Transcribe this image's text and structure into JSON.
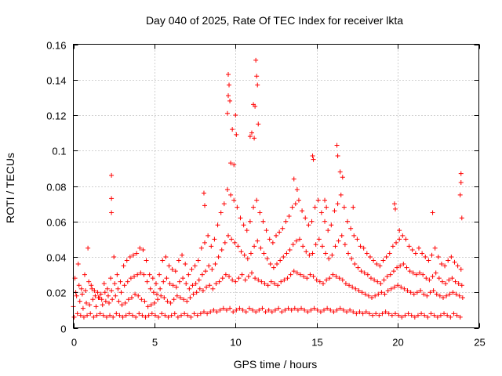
{
  "chart_data": {
    "type": "scatter",
    "title": "Day 040 of 2025, Rate Of TEC Index for receiver lkta",
    "xlabel": "GPS time / hours",
    "ylabel": "ROTI / TECUs",
    "xlim": [
      0,
      25
    ],
    "ylim": [
      0,
      0.16
    ],
    "xticks": [
      0,
      5,
      10,
      15,
      20,
      25
    ],
    "xtick_labels": [
      "0",
      "5",
      "10",
      "15",
      "20",
      "25"
    ],
    "yticks": [
      0,
      0.02,
      0.04,
      0.06,
      0.08,
      0.1,
      0.12,
      0.14,
      0.16
    ],
    "ytick_labels": [
      "0",
      "0.02",
      "0.04",
      "0.06",
      "0.08",
      "0.1",
      "0.12",
      "0.14",
      "0.16"
    ],
    "grid": true,
    "marker": "+",
    "color": "#ff0000",
    "series": [
      {
        "name": "ROTI",
        "x": [
          0.0,
          0.2,
          0.4,
          0.6,
          0.8,
          1.0,
          1.2,
          1.4,
          1.6,
          1.8,
          2.0,
          2.2,
          2.4,
          2.6,
          2.8,
          3.0,
          3.2,
          3.4,
          3.6,
          3.8,
          4.0,
          4.2,
          4.4,
          4.6,
          4.8,
          5.0,
          5.2,
          5.4,
          5.6,
          5.8,
          6.0,
          6.2,
          6.4,
          6.6,
          6.8,
          7.0,
          7.2,
          7.4,
          7.6,
          7.8,
          8.0,
          8.2,
          8.4,
          8.6,
          8.8,
          9.0,
          9.2,
          9.4,
          9.6,
          9.8,
          10.0,
          10.2,
          10.4,
          10.6,
          10.8,
          11.0,
          11.2,
          11.4,
          11.6,
          11.8,
          12.0,
          12.2,
          12.4,
          12.6,
          12.8,
          13.0,
          13.2,
          13.4,
          13.6,
          13.8,
          14.0,
          14.2,
          14.4,
          14.6,
          14.8,
          15.0,
          15.2,
          15.4,
          15.6,
          15.8,
          16.0,
          16.2,
          16.4,
          16.6,
          16.8,
          17.0,
          17.2,
          17.4,
          17.6,
          17.8,
          18.0,
          18.2,
          18.4,
          18.6,
          18.8,
          19.0,
          19.2,
          19.4,
          19.6,
          19.8,
          20.0,
          20.2,
          20.4,
          20.6,
          20.8,
          21.0,
          21.2,
          21.4,
          21.6,
          21.8,
          22.0,
          22.2,
          22.4,
          22.6,
          22.8,
          23.0,
          23.2,
          23.4,
          23.6,
          23.8,
          24.0,
          0.05,
          0.25,
          0.45,
          0.65,
          0.85,
          1.05,
          1.25,
          1.45,
          1.65,
          1.85,
          2.05,
          2.25,
          2.45,
          2.65,
          2.85,
          3.05,
          3.25,
          3.45,
          3.65,
          3.85,
          4.05,
          4.25,
          4.45,
          4.65,
          4.85,
          5.05,
          5.25,
          5.45,
          5.65,
          5.85,
          6.05,
          6.25,
          6.45,
          6.65,
          6.85,
          7.05,
          7.25,
          7.45,
          7.65,
          7.85,
          8.05,
          8.25,
          8.45,
          8.65,
          8.85,
          9.05,
          9.25,
          9.45,
          9.65,
          9.85,
          10.05,
          10.25,
          10.45,
          10.65,
          10.85,
          11.05,
          11.25,
          11.45,
          11.65,
          11.85,
          12.05,
          12.25,
          12.45,
          12.65,
          12.85,
          13.05,
          13.25,
          13.45,
          13.65,
          13.85,
          14.05,
          14.25,
          14.45,
          14.65,
          14.85,
          15.05,
          15.25,
          15.45,
          15.65,
          15.85,
          16.05,
          16.25,
          16.45,
          16.65,
          16.85,
          17.05,
          17.25,
          17.45,
          17.65,
          17.85,
          18.05,
          18.25,
          18.45,
          18.65,
          18.85,
          19.05,
          19.25,
          19.45,
          19.65,
          19.85,
          20.05,
          20.25,
          20.45,
          20.65,
          20.85,
          21.05,
          21.25,
          21.45,
          21.65,
          21.85,
          22.05,
          22.25,
          22.45,
          22.65,
          22.85,
          23.05,
          23.25,
          23.45,
          23.65,
          23.85,
          0.1,
          0.3,
          0.5,
          0.7,
          0.9,
          1.1,
          1.3,
          1.5,
          1.7,
          1.9,
          2.1,
          2.3,
          2.5,
          2.7,
          2.9,
          3.1,
          3.3,
          3.5,
          3.7,
          3.9,
          4.1,
          4.3,
          4.5,
          4.7,
          4.9,
          5.1,
          5.3,
          5.5,
          5.7,
          5.9,
          6.1,
          6.3,
          6.5,
          6.7,
          6.9,
          7.1,
          7.3,
          7.5,
          7.7,
          7.9,
          8.1,
          8.3,
          8.5,
          8.7,
          8.9,
          9.1,
          9.3,
          9.5,
          9.7,
          9.9,
          10.1,
          10.3,
          10.5,
          10.7,
          10.9,
          11.1,
          11.3,
          11.5,
          11.7,
          11.9,
          12.1,
          12.3,
          12.5,
          12.7,
          12.9,
          13.1,
          13.3,
          13.5,
          13.7,
          13.9,
          14.1,
          14.3,
          14.5,
          14.7,
          14.9,
          15.1,
          15.3,
          15.5,
          15.7,
          15.9,
          16.1,
          16.3,
          16.5,
          16.7,
          16.9,
          17.1,
          17.3,
          17.5,
          17.7,
          17.9,
          18.1,
          18.3,
          18.5,
          18.7,
          18.9,
          19.1,
          19.3,
          19.5,
          19.7,
          19.9,
          20.1,
          20.3,
          20.5,
          20.7,
          20.9,
          21.1,
          21.3,
          21.5,
          21.7,
          21.9,
          22.1,
          22.3,
          22.5,
          22.7,
          22.9,
          23.1,
          23.3,
          23.5,
          23.7,
          23.9,
          0.15,
          0.35,
          0.55,
          0.75,
          0.95,
          1.15,
          1.35,
          1.55,
          1.75,
          1.95,
          2.15,
          2.35,
          2.55,
          2.75,
          2.95,
          3.15,
          3.35,
          3.55,
          3.75,
          3.95,
          4.15,
          4.35,
          4.55,
          4.75,
          4.95,
          5.15,
          5.35,
          5.55,
          5.75,
          5.95,
          6.15,
          6.35,
          6.55,
          6.75,
          6.95,
          7.15,
          7.35,
          7.55,
          7.75,
          7.95,
          8.15,
          8.35,
          8.55,
          8.75,
          8.95,
          9.15,
          9.35,
          9.55,
          9.75,
          9.95,
          10.15,
          10.35,
          10.55,
          10.75,
          10.95,
          11.15,
          11.35,
          11.55,
          11.75,
          11.95,
          12.15,
          12.35,
          12.55,
          12.75,
          12.95,
          13.15,
          13.35,
          13.55,
          13.75,
          13.95,
          14.15,
          14.35,
          14.55,
          14.75,
          14.95,
          15.15,
          15.35,
          15.55,
          15.75,
          15.95,
          16.15,
          16.35,
          16.55,
          16.75,
          16.95,
          17.15,
          17.35,
          17.55,
          17.75,
          17.95,
          18.15,
          18.35,
          18.55,
          18.75,
          18.95,
          19.15,
          19.35,
          19.55,
          19.75,
          19.95,
          20.15,
          20.35,
          20.55,
          20.75,
          20.95,
          21.15,
          21.35,
          21.55,
          21.75,
          21.95,
          22.15,
          22.35,
          22.55,
          22.75,
          22.95,
          23.15,
          23.35,
          23.55,
          23.75,
          23.95,
          2.35,
          2.35,
          2.35,
          9.55,
          9.6,
          9.55,
          9.65,
          9.5,
          9.8,
          10.0,
          10.05,
          11.25,
          11.3,
          11.35,
          11.2,
          11.1,
          11.4,
          11.15,
          9.7,
          9.9,
          10.9,
          11.0,
          14.75,
          14.8,
          16.25,
          16.3,
          16.45,
          16.6,
          17.25,
          19.8,
          19.85,
          20.1,
          22.15,
          23.9,
          23.9,
          23.85,
          23.95,
          8.05,
          8.1,
          13.6,
          13.8,
          15.5,
          15.6
        ],
        "y": [
          0.012,
          0.018,
          0.015,
          0.011,
          0.014,
          0.013,
          0.016,
          0.012,
          0.017,
          0.013,
          0.015,
          0.014,
          0.016,
          0.018,
          0.015,
          0.013,
          0.014,
          0.016,
          0.017,
          0.019,
          0.018,
          0.016,
          0.015,
          0.012,
          0.013,
          0.014,
          0.016,
          0.018,
          0.017,
          0.015,
          0.014,
          0.016,
          0.018,
          0.017,
          0.016,
          0.015,
          0.017,
          0.019,
          0.02,
          0.022,
          0.021,
          0.023,
          0.024,
          0.022,
          0.025,
          0.026,
          0.028,
          0.03,
          0.029,
          0.027,
          0.026,
          0.028,
          0.03,
          0.027,
          0.029,
          0.031,
          0.028,
          0.027,
          0.026,
          0.025,
          0.024,
          0.026,
          0.025,
          0.024,
          0.026,
          0.027,
          0.028,
          0.03,
          0.032,
          0.031,
          0.03,
          0.029,
          0.028,
          0.03,
          0.029,
          0.027,
          0.026,
          0.025,
          0.027,
          0.028,
          0.03,
          0.029,
          0.028,
          0.027,
          0.025,
          0.024,
          0.023,
          0.022,
          0.021,
          0.02,
          0.019,
          0.018,
          0.017,
          0.018,
          0.019,
          0.02,
          0.019,
          0.021,
          0.022,
          0.023,
          0.024,
          0.023,
          0.022,
          0.021,
          0.02,
          0.019,
          0.02,
          0.021,
          0.019,
          0.018,
          0.02,
          0.021,
          0.019,
          0.018,
          0.017,
          0.018,
          0.019,
          0.02,
          0.019,
          0.018,
          0.017,
          0.006,
          0.008,
          0.007,
          0.006,
          0.007,
          0.008,
          0.006,
          0.007,
          0.008,
          0.007,
          0.006,
          0.007,
          0.006,
          0.008,
          0.007,
          0.006,
          0.007,
          0.008,
          0.007,
          0.006,
          0.008,
          0.007,
          0.006,
          0.007,
          0.008,
          0.007,
          0.006,
          0.008,
          0.007,
          0.006,
          0.007,
          0.008,
          0.006,
          0.007,
          0.008,
          0.007,
          0.006,
          0.008,
          0.007,
          0.008,
          0.009,
          0.008,
          0.009,
          0.01,
          0.009,
          0.01,
          0.011,
          0.01,
          0.011,
          0.009,
          0.01,
          0.011,
          0.01,
          0.009,
          0.011,
          0.01,
          0.009,
          0.01,
          0.011,
          0.009,
          0.01,
          0.009,
          0.01,
          0.011,
          0.009,
          0.01,
          0.011,
          0.01,
          0.011,
          0.01,
          0.011,
          0.01,
          0.009,
          0.01,
          0.011,
          0.01,
          0.009,
          0.01,
          0.011,
          0.01,
          0.009,
          0.01,
          0.011,
          0.01,
          0.009,
          0.01,
          0.009,
          0.008,
          0.009,
          0.008,
          0.009,
          0.008,
          0.007,
          0.008,
          0.007,
          0.008,
          0.009,
          0.008,
          0.007,
          0.008,
          0.007,
          0.006,
          0.007,
          0.008,
          0.007,
          0.006,
          0.007,
          0.008,
          0.007,
          0.006,
          0.008,
          0.007,
          0.006,
          0.007,
          0.008,
          0.007,
          0.006,
          0.008,
          0.007,
          0.006,
          0.028,
          0.036,
          0.022,
          0.03,
          0.045,
          0.024,
          0.021,
          0.02,
          0.019,
          0.025,
          0.022,
          0.028,
          0.04,
          0.03,
          0.026,
          0.035,
          0.038,
          0.04,
          0.041,
          0.042,
          0.045,
          0.044,
          0.038,
          0.03,
          0.028,
          0.025,
          0.03,
          0.038,
          0.04,
          0.035,
          0.033,
          0.032,
          0.038,
          0.041,
          0.036,
          0.03,
          0.033,
          0.035,
          0.038,
          0.045,
          0.048,
          0.052,
          0.046,
          0.05,
          0.058,
          0.065,
          0.07,
          0.078,
          0.075,
          0.072,
          0.068,
          0.062,
          0.058,
          0.055,
          0.06,
          0.068,
          0.072,
          0.065,
          0.06,
          0.055,
          0.05,
          0.048,
          0.052,
          0.054,
          0.056,
          0.06,
          0.063,
          0.068,
          0.07,
          0.072,
          0.066,
          0.062,
          0.058,
          0.06,
          0.068,
          0.072,
          0.065,
          0.06,
          0.055,
          0.058,
          0.066,
          0.07,
          0.075,
          0.068,
          0.06,
          0.056,
          0.052,
          0.05,
          0.046,
          0.045,
          0.042,
          0.04,
          0.038,
          0.036,
          0.035,
          0.038,
          0.04,
          0.042,
          0.046,
          0.048,
          0.05,
          0.052,
          0.05,
          0.046,
          0.044,
          0.042,
          0.045,
          0.042,
          0.04,
          0.038,
          0.041,
          0.045,
          0.04,
          0.036,
          0.035,
          0.038,
          0.04,
          0.037,
          0.035,
          0.033,
          0.02,
          0.024,
          0.019,
          0.021,
          0.026,
          0.022,
          0.018,
          0.017,
          0.016,
          0.02,
          0.018,
          0.021,
          0.025,
          0.022,
          0.02,
          0.024,
          0.026,
          0.028,
          0.029,
          0.03,
          0.031,
          0.03,
          0.026,
          0.022,
          0.02,
          0.019,
          0.022,
          0.026,
          0.028,
          0.025,
          0.024,
          0.023,
          0.026,
          0.028,
          0.025,
          0.022,
          0.024,
          0.025,
          0.027,
          0.03,
          0.032,
          0.035,
          0.033,
          0.036,
          0.04,
          0.044,
          0.048,
          0.052,
          0.05,
          0.048,
          0.046,
          0.043,
          0.041,
          0.039,
          0.042,
          0.046,
          0.049,
          0.045,
          0.042,
          0.039,
          0.036,
          0.034,
          0.036,
          0.038,
          0.04,
          0.042,
          0.044,
          0.047,
          0.049,
          0.05,
          0.046,
          0.043,
          0.041,
          0.042,
          0.047,
          0.05,
          0.046,
          0.042,
          0.039,
          0.041,
          0.046,
          0.049,
          0.052,
          0.047,
          0.042,
          0.039,
          0.036,
          0.034,
          0.032,
          0.031,
          0.03,
          0.028,
          0.027,
          0.026,
          0.025,
          0.027,
          0.029,
          0.03,
          0.032,
          0.034,
          0.035,
          0.036,
          0.034,
          0.032,
          0.031,
          0.03,
          0.031,
          0.03,
          0.028,
          0.027,
          0.029,
          0.031,
          0.028,
          0.026,
          0.025,
          0.027,
          0.028,
          0.026,
          0.025,
          0.024,
          0.086,
          0.073,
          0.065,
          0.143,
          0.137,
          0.131,
          0.128,
          0.121,
          0.112,
          0.12,
          0.109,
          0.151,
          0.142,
          0.137,
          0.125,
          0.126,
          0.115,
          0.107,
          0.093,
          0.092,
          0.108,
          0.11,
          0.097,
          0.095,
          0.103,
          0.097,
          0.088,
          0.085,
          0.068,
          0.07,
          0.067,
          0.055,
          0.065,
          0.087,
          0.082,
          0.075,
          0.062,
          0.076,
          0.069,
          0.084,
          0.078,
          0.072,
          0.068
        ]
      }
    ]
  }
}
